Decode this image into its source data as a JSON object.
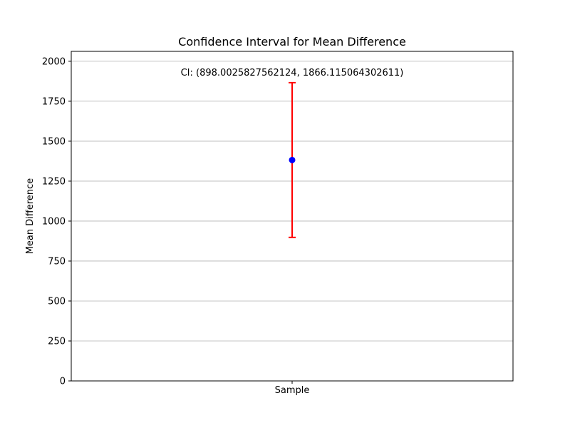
{
  "chart_data": {
    "type": "scatter",
    "title": "Confidence Interval for Mean Difference",
    "xlabel": "",
    "ylabel": "Mean Difference",
    "categories": [
      "Sample"
    ],
    "points": [
      {
        "category": "Sample",
        "mean": 1382.06,
        "ci_lower": 898.0025827562124,
        "ci_upper": 1866.115064302611
      }
    ],
    "annotation": "CI: (898.0025827562124, 1866.115064302611)",
    "ylim": [
      0,
      2062
    ],
    "yticks": [
      0,
      250,
      500,
      750,
      1000,
      1250,
      1500,
      1750,
      2000
    ],
    "grid": "y",
    "point_color": "#0000ff",
    "errorbar_color": "#ff0000"
  }
}
